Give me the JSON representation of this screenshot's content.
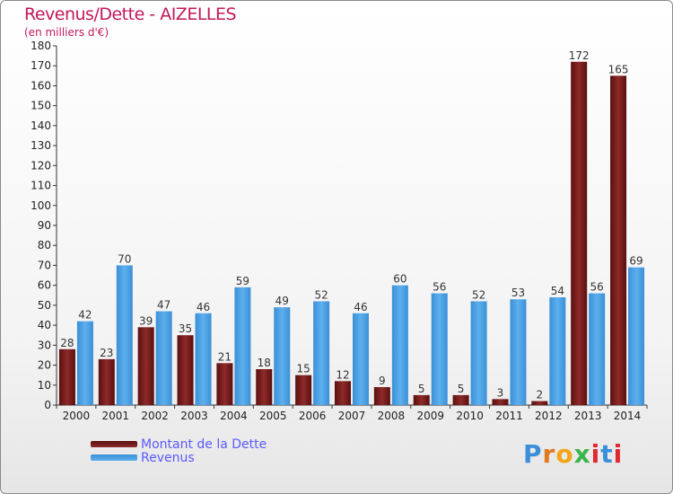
{
  "title": "Revenus/Dette - AIZELLES",
  "subtitle": "(en milliers d'€)",
  "logo_text": "Proxiti",
  "chart_data": {
    "type": "bar",
    "title": "Revenus/Dette - AIZELLES",
    "subtitle": "(en milliers d'€)",
    "categories": [
      "2000",
      "2001",
      "2002",
      "2003",
      "2004",
      "2005",
      "2006",
      "2007",
      "2008",
      "2009",
      "2010",
      "2011",
      "2012",
      "2013",
      "2014"
    ],
    "series": [
      {
        "name": "Montant de la Dette",
        "color": "#7b1a1a",
        "values": [
          28,
          23,
          39,
          35,
          21,
          18,
          15,
          12,
          9,
          5,
          5,
          3,
          2,
          172,
          165
        ]
      },
      {
        "name": "Revenus",
        "color": "#4a9ee0",
        "values": [
          42,
          70,
          47,
          46,
          59,
          49,
          52,
          46,
          60,
          56,
          52,
          53,
          54,
          56,
          69
        ]
      }
    ],
    "ylim": [
      0,
      180
    ],
    "yticks": [
      0,
      10,
      20,
      30,
      40,
      50,
      60,
      70,
      80,
      90,
      100,
      110,
      120,
      130,
      140,
      150,
      160,
      170,
      180
    ],
    "grid": false,
    "legend_position": "bottom-left"
  }
}
